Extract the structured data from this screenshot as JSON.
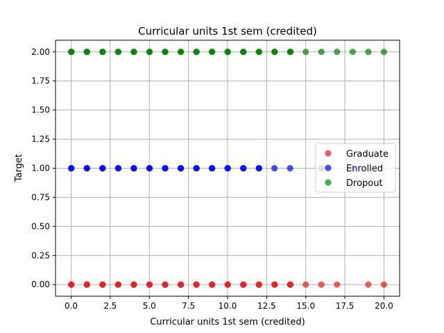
{
  "chart_data": {
    "type": "scatter",
    "title": "Curricular units 1st sem (credited)",
    "xlabel": "Curricular units 1st sem (credited)",
    "ylabel": "Target",
    "xlim": [
      -1,
      21
    ],
    "ylim": [
      -0.1,
      2.1
    ],
    "xticks": [
      0.0,
      2.5,
      5.0,
      7.5,
      10.0,
      12.5,
      15.0,
      17.5,
      20.0
    ],
    "xtick_labels": [
      "0.0",
      "2.5",
      "5.0",
      "7.5",
      "10.0",
      "12.5",
      "15.0",
      "17.5",
      "20.0"
    ],
    "yticks": [
      0.0,
      0.25,
      0.5,
      0.75,
      1.0,
      1.25,
      1.5,
      1.75,
      2.0
    ],
    "ytick_labels": [
      "0.00",
      "0.25",
      "0.50",
      "0.75",
      "1.00",
      "1.25",
      "1.50",
      "1.75",
      "2.00"
    ],
    "grid": true,
    "legend_position": "center-right",
    "series": [
      {
        "name": "Graduate",
        "color": "#e41a1c",
        "y": 0,
        "x": [
          0,
          1,
          2,
          3,
          4,
          5,
          6,
          7,
          8,
          9,
          10,
          11,
          12,
          13,
          14,
          15,
          16,
          17,
          19,
          20
        ],
        "dense_up_to": 14
      },
      {
        "name": "Enrolled",
        "color": "#0000ff",
        "y": 1,
        "x": [
          0,
          1,
          2,
          3,
          4,
          5,
          6,
          7,
          8,
          9,
          10,
          11,
          12,
          13,
          14,
          16,
          18
        ],
        "dense_up_to": 12
      },
      {
        "name": "Dropout",
        "color": "#008000",
        "y": 2,
        "x": [
          0,
          1,
          2,
          3,
          4,
          5,
          6,
          7,
          8,
          9,
          10,
          11,
          12,
          13,
          14,
          15,
          16,
          17,
          18,
          19,
          20
        ],
        "dense_up_to": 14
      }
    ]
  }
}
